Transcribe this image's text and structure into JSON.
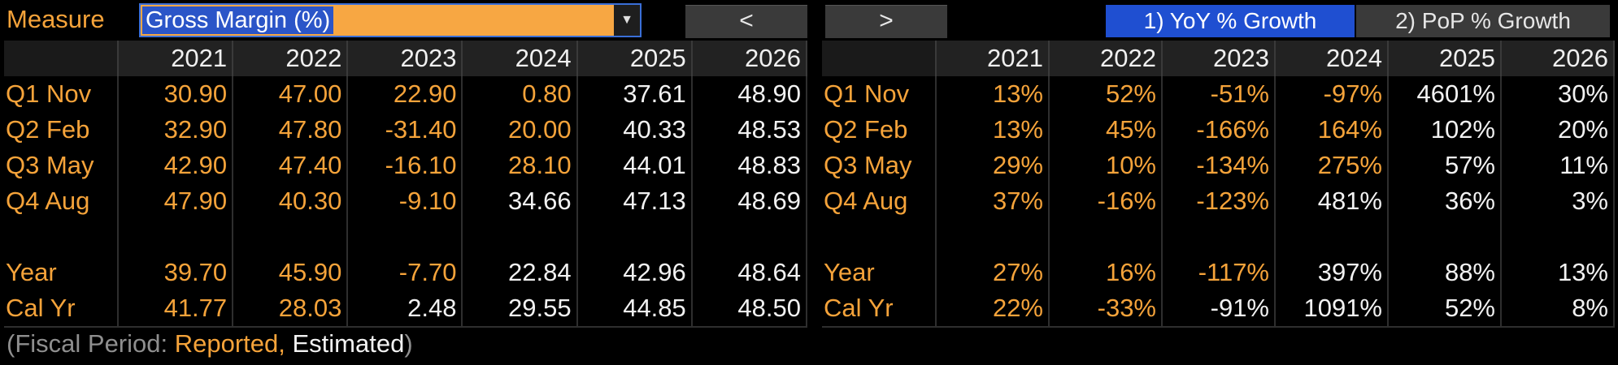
{
  "toolbar": {
    "measure_label": "Measure",
    "measure_value": "Gross Margin (%)",
    "prev_label": "<",
    "next_label": ">",
    "yoy_label": "1) YoY % Growth",
    "pop_label": "2) PoP % Growth",
    "dropdown_glyph": "▼"
  },
  "years": [
    "2021",
    "2022",
    "2023",
    "2024",
    "2025",
    "2026"
  ],
  "left_table": {
    "rows": [
      {
        "label": "Q1 Nov",
        "values": [
          "30.90",
          "47.00",
          "22.90",
          "0.80",
          "37.61",
          "48.90"
        ],
        "colors": [
          "o",
          "o",
          "o",
          "o",
          "w",
          "w"
        ]
      },
      {
        "label": "Q2 Feb",
        "values": [
          "32.90",
          "47.80",
          "-31.40",
          "20.00",
          "40.33",
          "48.53"
        ],
        "colors": [
          "o",
          "o",
          "o",
          "o",
          "w",
          "w"
        ]
      },
      {
        "label": "Q3 May",
        "values": [
          "42.90",
          "47.40",
          "-16.10",
          "28.10",
          "44.01",
          "48.83"
        ],
        "colors": [
          "o",
          "o",
          "o",
          "o",
          "w",
          "w"
        ]
      },
      {
        "label": "Q4 Aug",
        "values": [
          "47.90",
          "40.30",
          "-9.10",
          "34.66",
          "47.13",
          "48.69"
        ],
        "colors": [
          "o",
          "o",
          "o",
          "w",
          "w",
          "w"
        ]
      },
      {
        "label": "Year",
        "values": [
          "39.70",
          "45.90",
          "-7.70",
          "22.84",
          "42.96",
          "48.64"
        ],
        "colors": [
          "o",
          "o",
          "o",
          "w",
          "w",
          "w"
        ]
      },
      {
        "label": "Cal Yr",
        "values": [
          "41.77",
          "28.03",
          "2.48",
          "29.55",
          "44.85",
          "48.50"
        ],
        "colors": [
          "o",
          "o",
          "w",
          "w",
          "w",
          "w"
        ]
      }
    ]
  },
  "right_table": {
    "rows": [
      {
        "label": "Q1 Nov",
        "values": [
          "13%",
          "52%",
          "-51%",
          "-97%",
          "4601%",
          "30%"
        ],
        "colors": [
          "o",
          "o",
          "o",
          "o",
          "w",
          "w"
        ]
      },
      {
        "label": "Q2 Feb",
        "values": [
          "13%",
          "45%",
          "-166%",
          "164%",
          "102%",
          "20%"
        ],
        "colors": [
          "o",
          "o",
          "o",
          "o",
          "w",
          "w"
        ]
      },
      {
        "label": "Q3 May",
        "values": [
          "29%",
          "10%",
          "-134%",
          "275%",
          "57%",
          "11%"
        ],
        "colors": [
          "o",
          "o",
          "o",
          "o",
          "w",
          "w"
        ]
      },
      {
        "label": "Q4 Aug",
        "values": [
          "37%",
          "-16%",
          "-123%",
          "481%",
          "36%",
          "3%"
        ],
        "colors": [
          "o",
          "o",
          "o",
          "w",
          "w",
          "w"
        ]
      },
      {
        "label": "Year",
        "values": [
          "27%",
          "16%",
          "-117%",
          "397%",
          "88%",
          "13%"
        ],
        "colors": [
          "o",
          "o",
          "o",
          "w",
          "w",
          "w"
        ]
      },
      {
        "label": "Cal Yr",
        "values": [
          "22%",
          "-33%",
          "-91%",
          "1091%",
          "52%",
          "8%"
        ],
        "colors": [
          "o",
          "o",
          "w",
          "w",
          "w",
          "w"
        ]
      }
    ]
  },
  "footer": {
    "open": "(Fiscal Period: ",
    "reported": "Reported,",
    "estimated": " Estimated",
    "close": ")"
  },
  "colors": {
    "reported": "#f5a33a",
    "estimated": "#f2f2f2",
    "accent": "#1f4fd1"
  }
}
